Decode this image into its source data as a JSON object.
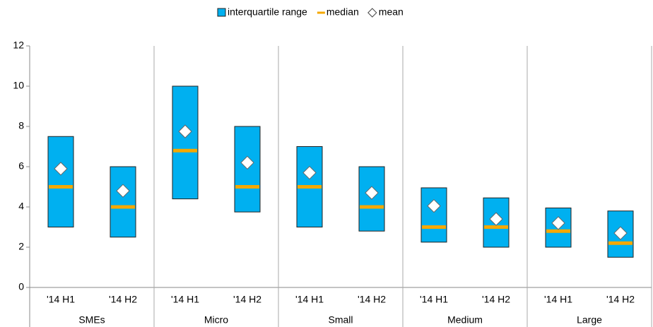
{
  "chart_data": {
    "type": "floating-bar",
    "categories": [
      "'14 H1",
      "'14 H2",
      "'14 H1",
      "'14 H2",
      "'14 H1",
      "'14 H2",
      "'14 H1",
      "'14 H2",
      "'14 H1",
      "'14 H2"
    ],
    "groups": [
      "SMEs",
      "Micro",
      "Small",
      "Medium",
      "Large"
    ],
    "series": [
      {
        "name": "interquartile range",
        "color": "#00b0f0",
        "low": [
          3,
          2.5,
          4.4,
          3.75,
          3,
          2.8,
          2.25,
          2,
          2,
          1.5
        ],
        "high": [
          7.5,
          6,
          10,
          8,
          7,
          6,
          4.95,
          4.45,
          3.95,
          3.8
        ]
      },
      {
        "name": "median",
        "color": "#f5a800",
        "values": [
          5,
          4,
          6.8,
          5,
          5,
          4,
          3,
          3,
          2.8,
          2.2
        ]
      },
      {
        "name": "mean",
        "color": "#ffffff",
        "values": [
          5.9,
          4.8,
          7.75,
          6.2,
          5.7,
          4.7,
          4.05,
          3.4,
          3.2,
          2.7
        ]
      }
    ],
    "ylim": [
      0,
      12
    ],
    "yticks": [
      0,
      2,
      4,
      6,
      8,
      10,
      12
    ]
  }
}
